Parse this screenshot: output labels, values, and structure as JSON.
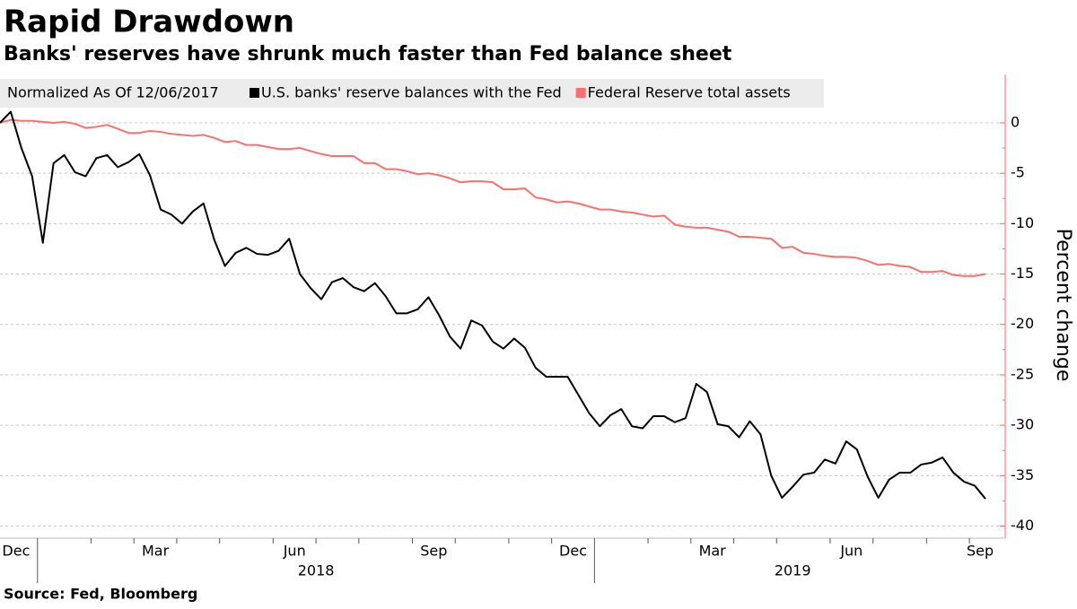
{
  "chart_data": {
    "type": "line",
    "title": "Rapid Drawdown",
    "subtitle": "Banks' reserves have shrunk much faster than Fed balance sheet",
    "legend_title": "Normalized As Of 12/06/2017",
    "y_label": "Percent change",
    "source": "Source: Fed, Bloomberg",
    "y_axis_side": "right",
    "y_axis_color": "#ff6b6b",
    "grid": true,
    "ylim": [
      -41.2,
      4.8
    ],
    "yticks": [
      0,
      -5,
      -10,
      -15,
      -20,
      -25,
      -30,
      -35,
      -40
    ],
    "x": [
      "2017-12",
      "2017-12",
      "2017-12",
      "2017-12",
      "2018-01",
      "2018-01",
      "2018-01",
      "2018-01",
      "2018-01",
      "2018-02",
      "2018-02",
      "2018-02",
      "2018-02",
      "2018-03",
      "2018-03",
      "2018-03",
      "2018-03",
      "2018-04",
      "2018-04",
      "2018-04",
      "2018-04",
      "2018-05",
      "2018-05",
      "2018-05",
      "2018-05",
      "2018-05",
      "2018-06",
      "2018-06",
      "2018-06",
      "2018-06",
      "2018-07",
      "2018-07",
      "2018-07",
      "2018-07",
      "2018-08",
      "2018-08",
      "2018-08",
      "2018-08",
      "2018-08",
      "2018-09",
      "2018-09",
      "2018-09",
      "2018-09",
      "2018-10",
      "2018-10",
      "2018-10",
      "2018-10",
      "2018-10",
      "2018-11",
      "2018-11",
      "2018-11",
      "2018-11",
      "2018-12",
      "2018-12",
      "2018-12",
      "2018-12",
      "2019-01",
      "2019-01",
      "2019-01",
      "2019-01",
      "2019-01",
      "2019-02",
      "2019-02",
      "2019-02",
      "2019-02",
      "2019-03",
      "2019-03",
      "2019-03",
      "2019-03",
      "2019-04",
      "2019-04",
      "2019-04",
      "2019-04",
      "2019-05",
      "2019-05",
      "2019-05",
      "2019-05",
      "2019-05",
      "2019-06",
      "2019-06",
      "2019-06",
      "2019-06",
      "2019-07",
      "2019-07",
      "2019-07",
      "2019-07",
      "2019-07",
      "2019-08",
      "2019-08",
      "2019-08",
      "2019-08",
      "2019-09",
      "2019-09"
    ],
    "xticks": [
      {
        "value": "2017-12",
        "label": "Dec"
      },
      {
        "value": "2018-03",
        "label": "Mar"
      },
      {
        "value": "2018-06",
        "label": "Jun"
      },
      {
        "value": "2018-09",
        "label": "Sep"
      },
      {
        "value": "2018-12",
        "label": "Dec"
      },
      {
        "value": "2019-03",
        "label": "Mar"
      },
      {
        "value": "2019-06",
        "label": "Jun"
      },
      {
        "value": "2019-09",
        "label": "Sep"
      }
    ],
    "year_labels": [
      "2018",
      "2019"
    ],
    "series": [
      {
        "name": "U.S. banks' reserve balances with the Fed",
        "color": "#000000",
        "values": [
          0,
          1.1,
          -2.5,
          -5.3,
          -11.9,
          -4.0,
          -3.2,
          -4.9,
          -5.3,
          -3.5,
          -3.2,
          -4.4,
          -3.9,
          -3.1,
          -5.2,
          -8.6,
          -9.1,
          -10.0,
          -8.8,
          -8.0,
          -11.6,
          -14.2,
          -12.9,
          -12.4,
          -13.0,
          -13.1,
          -12.7,
          -11.5,
          -15.0,
          -16.4,
          -17.5,
          -15.8,
          -15.4,
          -16.3,
          -16.7,
          -15.9,
          -17.2,
          -18.9,
          -18.9,
          -18.5,
          -17.3,
          -19.1,
          -21.2,
          -22.4,
          -19.6,
          -20.1,
          -21.7,
          -22.4,
          -21.4,
          -22.3,
          -24.3,
          -25.2,
          -25.2,
          -25.2,
          -27.0,
          -28.8,
          -30.1,
          -29.0,
          -28.4,
          -30.1,
          -30.3,
          -29.1,
          -29.1,
          -29.7,
          -29.3,
          -25.9,
          -26.7,
          -29.9,
          -30.1,
          -31.2,
          -29.6,
          -30.9,
          -35.0,
          -37.2,
          -36.1,
          -34.9,
          -34.7,
          -33.4,
          -33.8,
          -31.6,
          -32.4,
          -35.1,
          -37.2,
          -35.4,
          -34.7,
          -34.7,
          -33.9,
          -33.7,
          -33.2,
          -34.7,
          -35.6,
          -36.0,
          -37.3
        ]
      },
      {
        "name": "Federal Reserve total assets",
        "color": "#ff6f6f",
        "values": [
          0,
          0.3,
          0.2,
          0.2,
          0.1,
          0.0,
          0.1,
          -0.1,
          -0.5,
          -0.4,
          -0.2,
          -0.6,
          -1.0,
          -1.0,
          -0.8,
          -0.9,
          -1.1,
          -1.2,
          -1.3,
          -1.2,
          -1.5,
          -1.9,
          -1.8,
          -2.2,
          -2.2,
          -2.4,
          -2.6,
          -2.6,
          -2.5,
          -2.8,
          -3.1,
          -3.3,
          -3.3,
          -3.3,
          -4.0,
          -4.0,
          -4.6,
          -4.6,
          -4.8,
          -5.1,
          -5.0,
          -5.2,
          -5.5,
          -5.9,
          -5.8,
          -5.8,
          -5.9,
          -6.6,
          -6.6,
          -6.5,
          -7.4,
          -7.6,
          -7.9,
          -7.8,
          -8.0,
          -8.3,
          -8.6,
          -8.6,
          -8.8,
          -8.9,
          -9.1,
          -9.3,
          -9.2,
          -10.1,
          -10.3,
          -10.4,
          -10.4,
          -10.6,
          -10.8,
          -11.3,
          -11.3,
          -11.4,
          -11.5,
          -12.4,
          -12.3,
          -12.9,
          -13.0,
          -13.2,
          -13.3,
          -13.3,
          -13.4,
          -13.7,
          -14.1,
          -14.0,
          -14.2,
          -14.3,
          -14.8,
          -14.8,
          -14.7,
          -15.1,
          -15.2,
          -15.2,
          -15.0
        ]
      }
    ]
  }
}
